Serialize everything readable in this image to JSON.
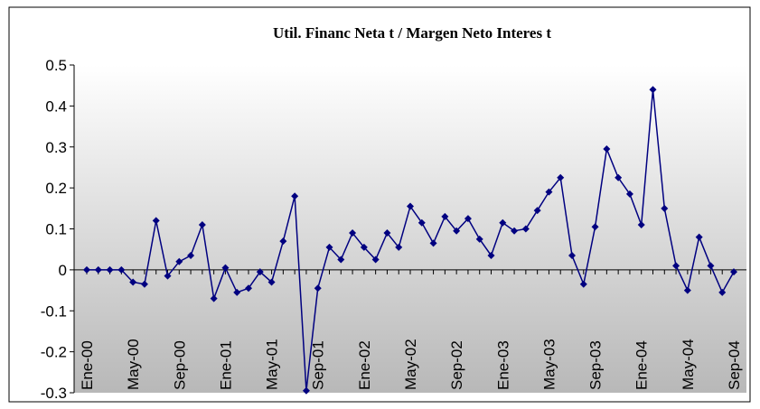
{
  "chart_data": {
    "type": "line",
    "title": "Util. Financ Neta t / Margen Neto Interes t",
    "categories": [
      "Ene-00",
      null,
      null,
      null,
      "May-00",
      null,
      null,
      null,
      "Sep-00",
      null,
      null,
      null,
      "Ene-01",
      null,
      null,
      null,
      "May-01",
      null,
      null,
      null,
      "Sep-01",
      null,
      null,
      null,
      "Ene-02",
      null,
      null,
      null,
      "May-02",
      null,
      null,
      null,
      "Sep-02",
      null,
      null,
      null,
      "Ene-03",
      null,
      null,
      null,
      "May-03",
      null,
      null,
      null,
      "Sep-03",
      null,
      null,
      null,
      "Ene-04",
      null,
      null,
      null,
      "May-04",
      null,
      null,
      null,
      "Sep-04"
    ],
    "series": [
      {
        "name": "Util. Financ Neta / Margen Neto Interes",
        "color": "#000080",
        "values": [
          0,
          0,
          0,
          0,
          -0.03,
          -0.035,
          0.12,
          -0.015,
          0.02,
          0.035,
          0.11,
          -0.07,
          0.005,
          -0.055,
          -0.045,
          -0.005,
          -0.03,
          0.07,
          0.18,
          -0.295,
          -0.045,
          0.055,
          0.025,
          0.09,
          0.055,
          0.025,
          0.09,
          0.055,
          0.155,
          0.115,
          0.065,
          0.13,
          0.095,
          0.125,
          0.075,
          0.035,
          0.115,
          0.095,
          0.1,
          0.145,
          0.19,
          0.225,
          0.035,
          -0.035,
          0.105,
          0.295,
          0.225,
          0.185,
          0.11,
          0.44,
          0.15,
          0.01,
          -0.05,
          0.08,
          0.01,
          -0.055,
          -0.005
        ]
      }
    ],
    "ylim": [
      -0.3,
      0.5
    ],
    "yticks": [
      -0.3,
      -0.2,
      -0.1,
      0,
      0.1,
      0.2,
      0.3,
      0.4,
      0.5
    ]
  }
}
